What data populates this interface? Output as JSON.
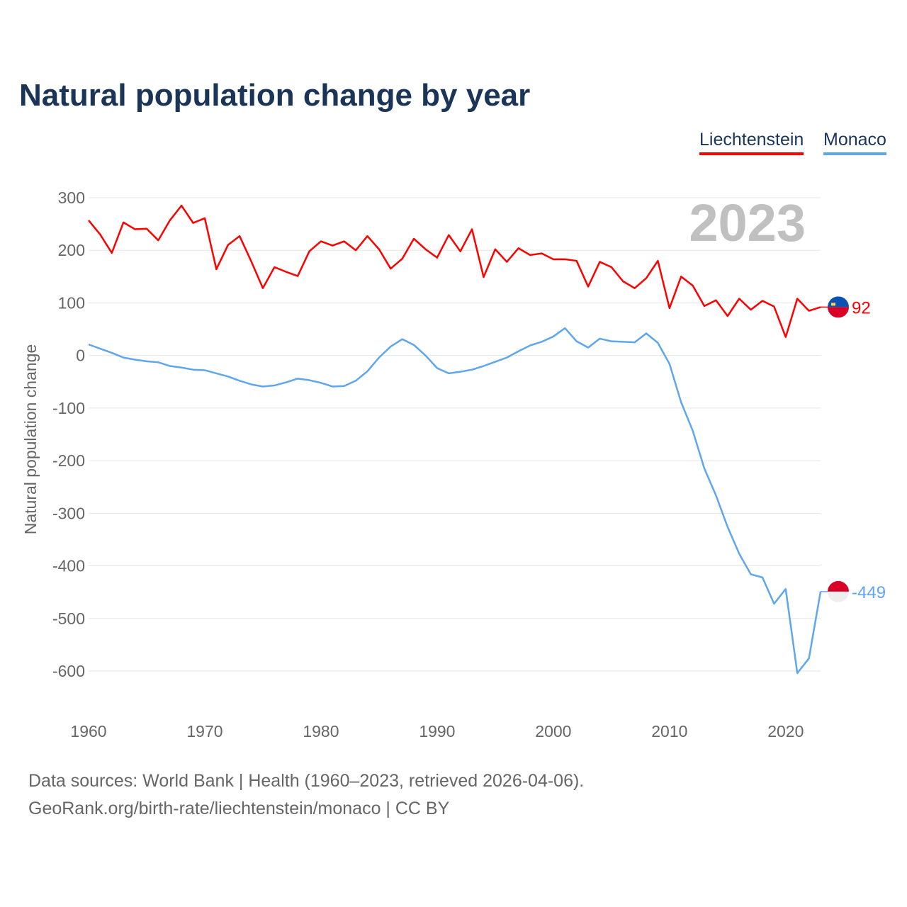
{
  "chart_data": {
    "type": "line",
    "title": "Natural population change by year",
    "ylabel": "Natural population change",
    "xlabel": "",
    "ylim": [
      -600,
      300
    ],
    "xlim": [
      1960,
      2023
    ],
    "yticks": [
      300,
      200,
      100,
      0,
      -100,
      -200,
      -300,
      -400,
      -500,
      -600
    ],
    "xticks": [
      1960,
      1970,
      1980,
      1990,
      2000,
      2010,
      2020
    ],
    "grid": true,
    "legend_position": "top-right",
    "year_label": "2023",
    "x": [
      1960,
      1961,
      1962,
      1963,
      1964,
      1965,
      1966,
      1967,
      1968,
      1969,
      1970,
      1971,
      1972,
      1973,
      1974,
      1975,
      1976,
      1977,
      1978,
      1979,
      1980,
      1981,
      1982,
      1983,
      1984,
      1985,
      1986,
      1987,
      1988,
      1989,
      1990,
      1991,
      1992,
      1993,
      1994,
      1995,
      1996,
      1997,
      1998,
      1999,
      2000,
      2001,
      2002,
      2003,
      2004,
      2005,
      2006,
      2007,
      2008,
      2009,
      2010,
      2011,
      2012,
      2013,
      2014,
      2015,
      2016,
      2017,
      2018,
      2019,
      2020,
      2021,
      2022,
      2023
    ],
    "series": [
      {
        "name": "Liechtenstein",
        "color": "#ff0000",
        "end_label": "92",
        "values": [
          257,
          230,
          195,
          253,
          240,
          241,
          219,
          257,
          285,
          252,
          261,
          164,
          210,
          227,
          179,
          128,
          168,
          159,
          151,
          198,
          217,
          209,
          217,
          200,
          227,
          202,
          165,
          184,
          222,
          202,
          186,
          229,
          198,
          240,
          149,
          202,
          178,
          204,
          191,
          194,
          183,
          183,
          180,
          131,
          178,
          168,
          141,
          128,
          147,
          180,
          90,
          150,
          133,
          94,
          105,
          75,
          108,
          87,
          104,
          93,
          35,
          108,
          85,
          92
        ]
      },
      {
        "name": "Monaco",
        "color": "#5ea6ee",
        "end_label": "-449",
        "values": [
          21,
          13,
          5,
          -4,
          -8,
          -11,
          -13,
          -20,
          -23,
          -27,
          -28,
          -34,
          -40,
          -48,
          -55,
          -59,
          -57,
          -51,
          -44,
          -47,
          -52,
          -59,
          -58,
          -48,
          -30,
          -4,
          17,
          31,
          20,
          0,
          -24,
          -34,
          -31,
          -27,
          -20,
          -12,
          -4,
          8,
          19,
          26,
          36,
          52,
          27,
          15,
          32,
          27,
          26,
          25,
          42,
          24,
          -16,
          -89,
          -143,
          -215,
          -266,
          -326,
          -377,
          -416,
          -422,
          -472,
          -444,
          -604,
          -576,
          -449
        ]
      }
    ]
  },
  "footer": {
    "line1": "Data sources: World Bank | Health (1960–2023, retrieved 2026-04-06).",
    "line2": "GeoRank.org/birth-rate/liechtenstein/monaco | CC BY"
  }
}
